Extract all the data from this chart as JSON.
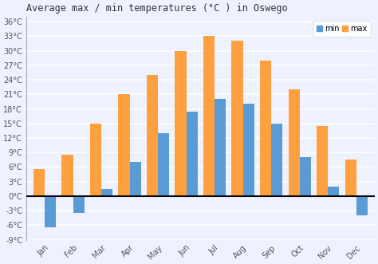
{
  "months": [
    "Jan",
    "Feb",
    "Mar",
    "Apr",
    "May",
    "Jun",
    "Jul",
    "Aug",
    "Sep",
    "Oct",
    "Nov",
    "Dec"
  ],
  "max_temps": [
    5.5,
    8.5,
    15,
    21,
    25,
    30,
    33,
    32,
    28,
    22,
    14.5,
    7.5
  ],
  "min_temps": [
    -6.5,
    -3.5,
    1.5,
    7,
    13,
    17.5,
    20,
    19,
    15,
    8,
    2,
    -4
  ],
  "bar_color_max": "#FFA040",
  "bar_color_min": "#5B9BD5",
  "title": "Average max / min temperatures (°C ) in Oswego",
  "ylabel_ticks": [
    "-9°C",
    "-6°C",
    "-3°C",
    "0°C",
    "3°C",
    "6°C",
    "9°C",
    "12°C",
    "15°C",
    "18°C",
    "21°C",
    "24°C",
    "27°C",
    "30°C",
    "33°C",
    "36°C"
  ],
  "ytick_vals": [
    -9,
    -6,
    -3,
    0,
    3,
    6,
    9,
    12,
    15,
    18,
    21,
    24,
    27,
    30,
    33,
    36
  ],
  "ylim": [
    -9,
    37
  ],
  "background_color": "#eef2ff",
  "grid_color": "#ffffff",
  "legend_min_label": "min",
  "legend_max_label": "max",
  "title_fontsize": 8.5,
  "tick_fontsize": 7,
  "bar_width": 0.4
}
